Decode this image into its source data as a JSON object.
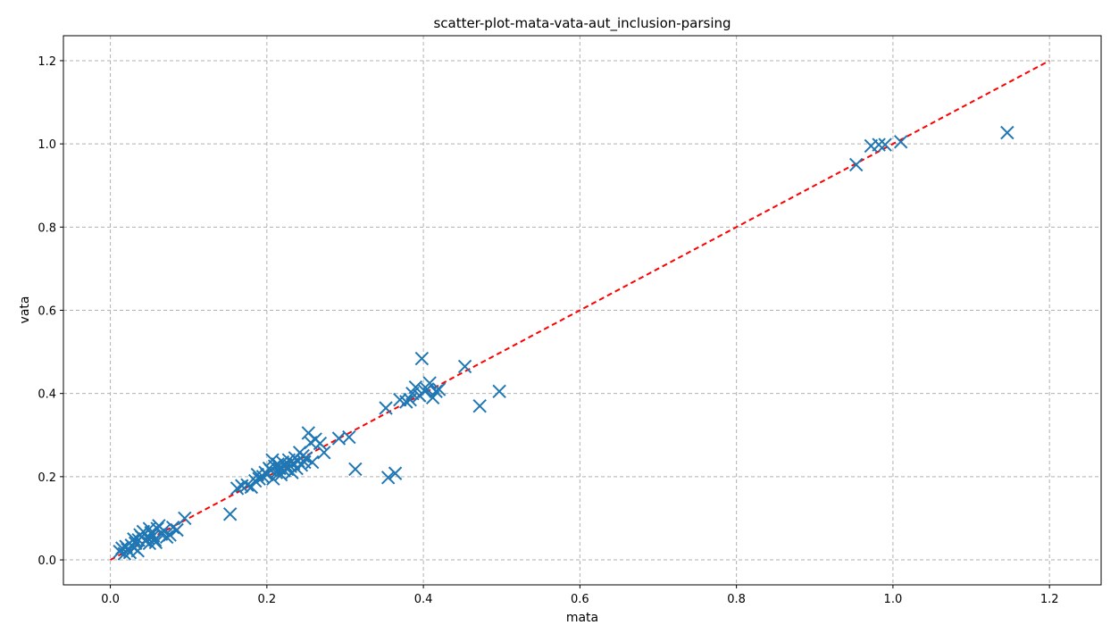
{
  "chart_data": {
    "type": "scatter",
    "title": "scatter-plot-mata-vata-aut_inclusion-parsing",
    "xlabel": "mata",
    "ylabel": "vata",
    "xlim": [
      -0.06,
      1.266
    ],
    "ylim": [
      -0.06,
      1.26
    ],
    "xticks": [
      0.0,
      0.2,
      0.4,
      0.6,
      0.8,
      1.0,
      1.2
    ],
    "yticks": [
      0.0,
      0.2,
      0.4,
      0.6,
      0.8,
      1.0,
      1.2
    ],
    "xtick_labels": [
      "0.0",
      "0.2",
      "0.4",
      "0.6",
      "0.8",
      "1.0",
      "1.2"
    ],
    "ytick_labels": [
      "0.0",
      "0.2",
      "0.4",
      "0.6",
      "0.8",
      "1.0",
      "1.2"
    ],
    "grid": true,
    "marker": "x",
    "marker_color": "#1f77b4",
    "reference_line": {
      "x": [
        0.0,
        1.2
      ],
      "y": [
        0.0,
        1.2
      ],
      "color": "#ff0000",
      "style": "dashed"
    },
    "points": [
      [
        0.012,
        0.02
      ],
      [
        0.015,
        0.028
      ],
      [
        0.018,
        0.015
      ],
      [
        0.02,
        0.032
      ],
      [
        0.022,
        0.025
      ],
      [
        0.025,
        0.018
      ],
      [
        0.027,
        0.035
      ],
      [
        0.03,
        0.03
      ],
      [
        0.032,
        0.04
      ],
      [
        0.035,
        0.022
      ],
      [
        0.036,
        0.048
      ],
      [
        0.038,
        0.06
      ],
      [
        0.04,
        0.055
      ],
      [
        0.042,
        0.068
      ],
      [
        0.045,
        0.045
      ],
      [
        0.048,
        0.052
      ],
      [
        0.05,
        0.04
      ],
      [
        0.052,
        0.065
      ],
      [
        0.055,
        0.058
      ],
      [
        0.057,
        0.048
      ],
      [
        0.058,
        0.042
      ],
      [
        0.06,
        0.075
      ],
      [
        0.062,
        0.082
      ],
      [
        0.065,
        0.062
      ],
      [
        0.068,
        0.07
      ],
      [
        0.072,
        0.055
      ],
      [
        0.076,
        0.06
      ],
      [
        0.08,
        0.078
      ],
      [
        0.085,
        0.072
      ],
      [
        0.095,
        0.1
      ],
      [
        0.05,
        0.075
      ],
      [
        0.03,
        0.05
      ],
      [
        0.153,
        0.11
      ],
      [
        0.162,
        0.172
      ],
      [
        0.168,
        0.178
      ],
      [
        0.175,
        0.18
      ],
      [
        0.18,
        0.175
      ],
      [
        0.185,
        0.19
      ],
      [
        0.188,
        0.205
      ],
      [
        0.19,
        0.195
      ],
      [
        0.195,
        0.2
      ],
      [
        0.198,
        0.21
      ],
      [
        0.2,
        0.205
      ],
      [
        0.203,
        0.22
      ],
      [
        0.205,
        0.215
      ],
      [
        0.207,
        0.24
      ],
      [
        0.208,
        0.195
      ],
      [
        0.21,
        0.225
      ],
      [
        0.212,
        0.21
      ],
      [
        0.214,
        0.23
      ],
      [
        0.216,
        0.22
      ],
      [
        0.218,
        0.205
      ],
      [
        0.22,
        0.235
      ],
      [
        0.222,
        0.215
      ],
      [
        0.224,
        0.228
      ],
      [
        0.226,
        0.218
      ],
      [
        0.228,
        0.24
      ],
      [
        0.23,
        0.225
      ],
      [
        0.232,
        0.21
      ],
      [
        0.234,
        0.232
      ],
      [
        0.236,
        0.245
      ],
      [
        0.238,
        0.22
      ],
      [
        0.24,
        0.238
      ],
      [
        0.242,
        0.258
      ],
      [
        0.244,
        0.228
      ],
      [
        0.246,
        0.25
      ],
      [
        0.248,
        0.235
      ],
      [
        0.25,
        0.245
      ],
      [
        0.253,
        0.305
      ],
      [
        0.256,
        0.282
      ],
      [
        0.258,
        0.235
      ],
      [
        0.262,
        0.29
      ],
      [
        0.268,
        0.28
      ],
      [
        0.273,
        0.258
      ],
      [
        0.292,
        0.292
      ],
      [
        0.305,
        0.295
      ],
      [
        0.313,
        0.218
      ],
      [
        0.355,
        0.198
      ],
      [
        0.364,
        0.208
      ],
      [
        0.352,
        0.365
      ],
      [
        0.37,
        0.385
      ],
      [
        0.378,
        0.38
      ],
      [
        0.383,
        0.385
      ],
      [
        0.386,
        0.4
      ],
      [
        0.39,
        0.415
      ],
      [
        0.395,
        0.395
      ],
      [
        0.398,
        0.484
      ],
      [
        0.402,
        0.405
      ],
      [
        0.405,
        0.41
      ],
      [
        0.408,
        0.425
      ],
      [
        0.412,
        0.39
      ],
      [
        0.416,
        0.405
      ],
      [
        0.42,
        0.41
      ],
      [
        0.453,
        0.465
      ],
      [
        0.472,
        0.37
      ],
      [
        0.497,
        0.405
      ],
      [
        0.953,
        0.95
      ],
      [
        0.972,
        0.995
      ],
      [
        0.982,
        0.998
      ],
      [
        0.99,
        0.998
      ],
      [
        1.01,
        1.005
      ],
      [
        1.146,
        1.027
      ]
    ]
  }
}
